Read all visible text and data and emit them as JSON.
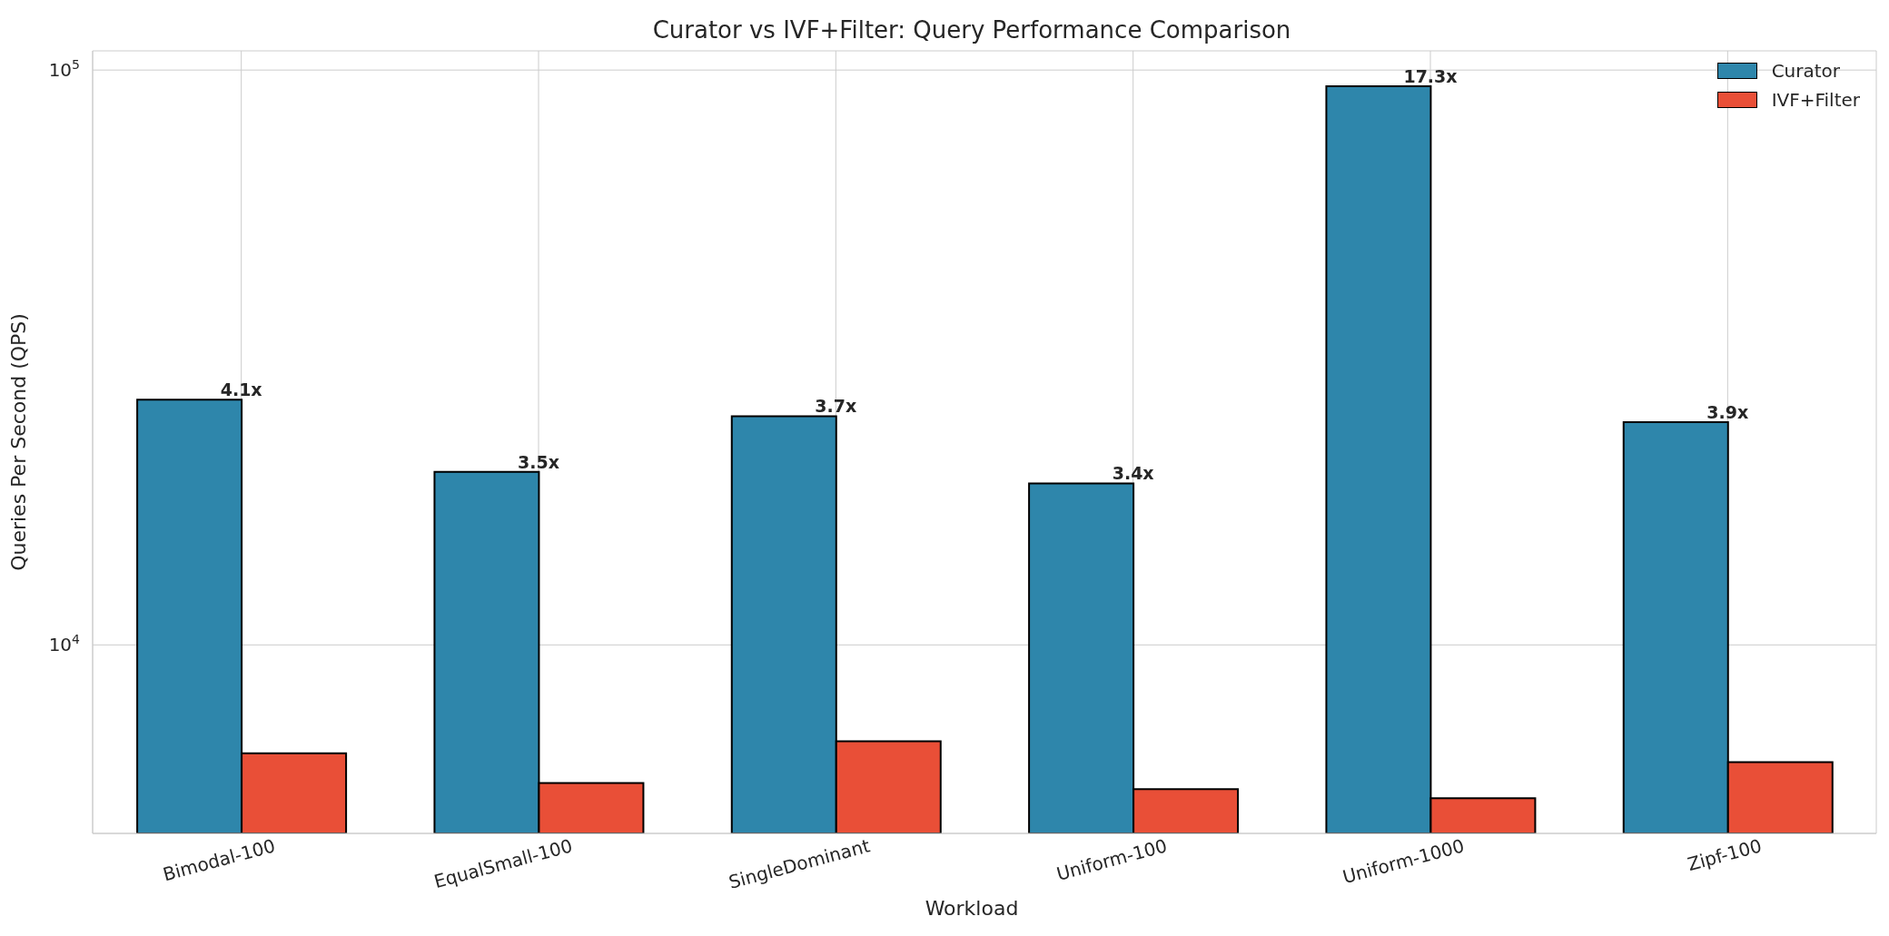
{
  "chart_data": {
    "type": "bar",
    "title": "Curator vs IVF+Filter: Query Performance Comparison",
    "xlabel": "Workload",
    "ylabel": "Queries Per Second (QPS)",
    "categories": [
      "Bimodal-100",
      "EqualSmall-100",
      "SingleDominant",
      "Uniform-100",
      "Uniform-1000",
      "Zipf-100"
    ],
    "series": [
      {
        "name": "Curator",
        "color": "#2e86ab",
        "values": [
          26700,
          20000,
          25000,
          19100,
          93700,
          24400
        ]
      },
      {
        "name": "IVF+Filter",
        "color": "#e94f37",
        "values": [
          6480,
          5750,
          6800,
          5610,
          5410,
          6250
        ]
      }
    ],
    "log": true,
    "ylim": [
      4700,
      108000
    ],
    "yticks": [
      {
        "value": 10000,
        "label": "10$^{4}$"
      },
      {
        "value": 100000,
        "label": "10$^{5}$"
      }
    ],
    "grid": true,
    "legend": "top right",
    "annotations": [
      {
        "text": "4.1x",
        "x": "Bimodal-100",
        "y": 26700
      },
      {
        "text": "3.5x",
        "x": "EqualSmall-100",
        "y": 20000
      },
      {
        "text": "3.7x",
        "x": "SingleDominant",
        "y": 25000
      },
      {
        "text": "3.4x",
        "x": "Uniform-100",
        "y": 19100
      },
      {
        "text": "17.3x",
        "x": "Uniform-1000",
        "y": 93700
      },
      {
        "text": "3.9x",
        "x": "Zipf-100",
        "y": 24400
      }
    ]
  }
}
